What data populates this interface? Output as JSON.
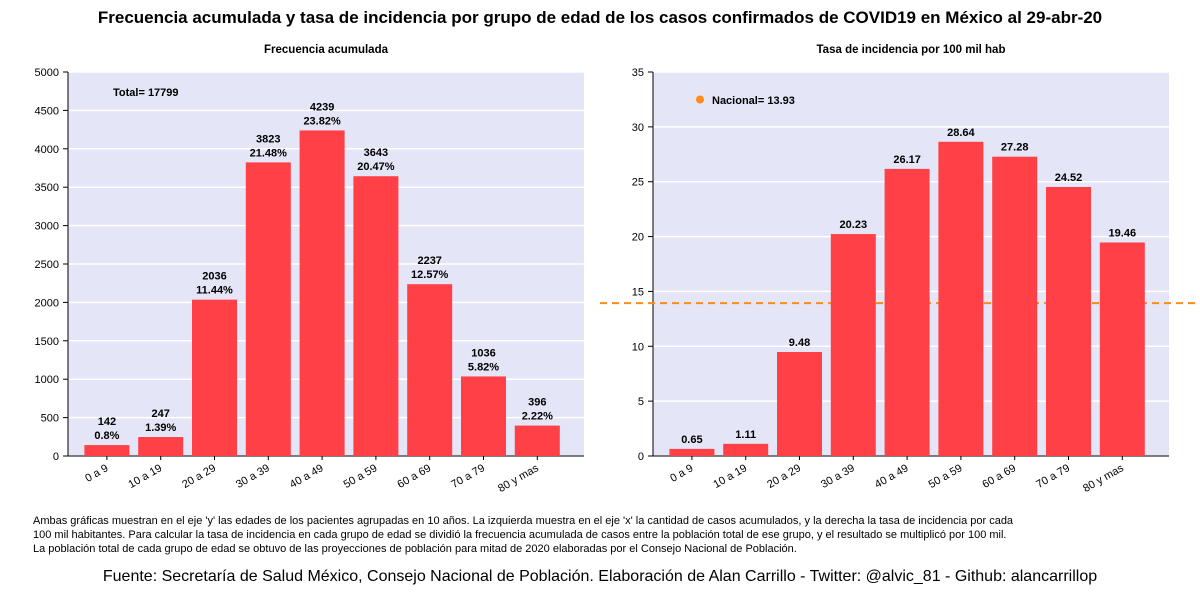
{
  "title": "Frecuencia acumulada y tasa de incidencia por grupo de edad de los casos confirmados de COVID19 en México al 29-abr-20",
  "notes": [
    "Ambas gráficas muestran en el eje 'y' las edades de los pacientes agrupadas en 10 años. La izquierda muestra en el eje 'x' la cantidad de casos acumulados, y la derecha la tasa de incidencia por cada",
    "100 mil habitantes. Para calcular la tasa de incidencia en cada grupo de edad se dividió la frecuencia acumulada de casos entre la población total de ese grupo, y el resultado se multiplicó por 100 mil.",
    "La población total de cada grupo de edad se obtuvo de las proyecciones de población para mitad de 2020 elaboradas por el Consejo Nacional de Población."
  ],
  "source": "Fuente: Secretaría de Salud México, Consejo Nacional de Población. Elaboración de Alan Carrillo - Twitter: @alvic_81 - Github: alancarrillop",
  "colors": {
    "bar": "#ff4046",
    "panel": "#e5e5f8",
    "grid": "#ffffff",
    "refline": "#ff8c1a"
  },
  "chart_data": [
    {
      "type": "bar",
      "title": "Frecuencia acumulada",
      "categories": [
        "0 a 9",
        "10 a 19",
        "20 a 29",
        "30 a 39",
        "40 a 49",
        "50 a 59",
        "60 a 69",
        "70 a 79",
        "80 y mas"
      ],
      "values": [
        142,
        247,
        2036,
        3823,
        4239,
        3643,
        2237,
        1036,
        396
      ],
      "value_labels": [
        "142",
        "247",
        "2036",
        "3823",
        "4239",
        "3643",
        "2237",
        "1036",
        "396"
      ],
      "percent_labels": [
        "0.8%",
        "1.39%",
        "11.44%",
        "21.48%",
        "23.82%",
        "20.47%",
        "12.57%",
        "5.82%",
        "2.22%"
      ],
      "ylim": [
        0,
        5000
      ],
      "yticks": [
        0,
        500,
        1000,
        1500,
        2000,
        2500,
        3000,
        3500,
        4000,
        4500,
        5000
      ],
      "annotation": "Total= 17799",
      "grid": true
    },
    {
      "type": "bar",
      "title": "Tasa de incidencia por 100 mil hab",
      "categories": [
        "0 a 9",
        "10 a 19",
        "20 a 29",
        "30 a 39",
        "40 a 49",
        "50 a 59",
        "60 a 69",
        "70 a 79",
        "80 y mas"
      ],
      "values": [
        0.65,
        1.11,
        9.48,
        20.23,
        26.17,
        28.64,
        27.28,
        24.52,
        19.46
      ],
      "value_labels": [
        "0.65",
        "1.11",
        "9.48",
        "20.23",
        "26.17",
        "28.64",
        "27.28",
        "24.52",
        "19.46"
      ],
      "ylim": [
        0,
        35
      ],
      "yticks": [
        0,
        5,
        10,
        15,
        20,
        25,
        30,
        35
      ],
      "reference_line": {
        "value": 13.93,
        "label": "Nacional= 13.93"
      },
      "grid": true
    }
  ]
}
